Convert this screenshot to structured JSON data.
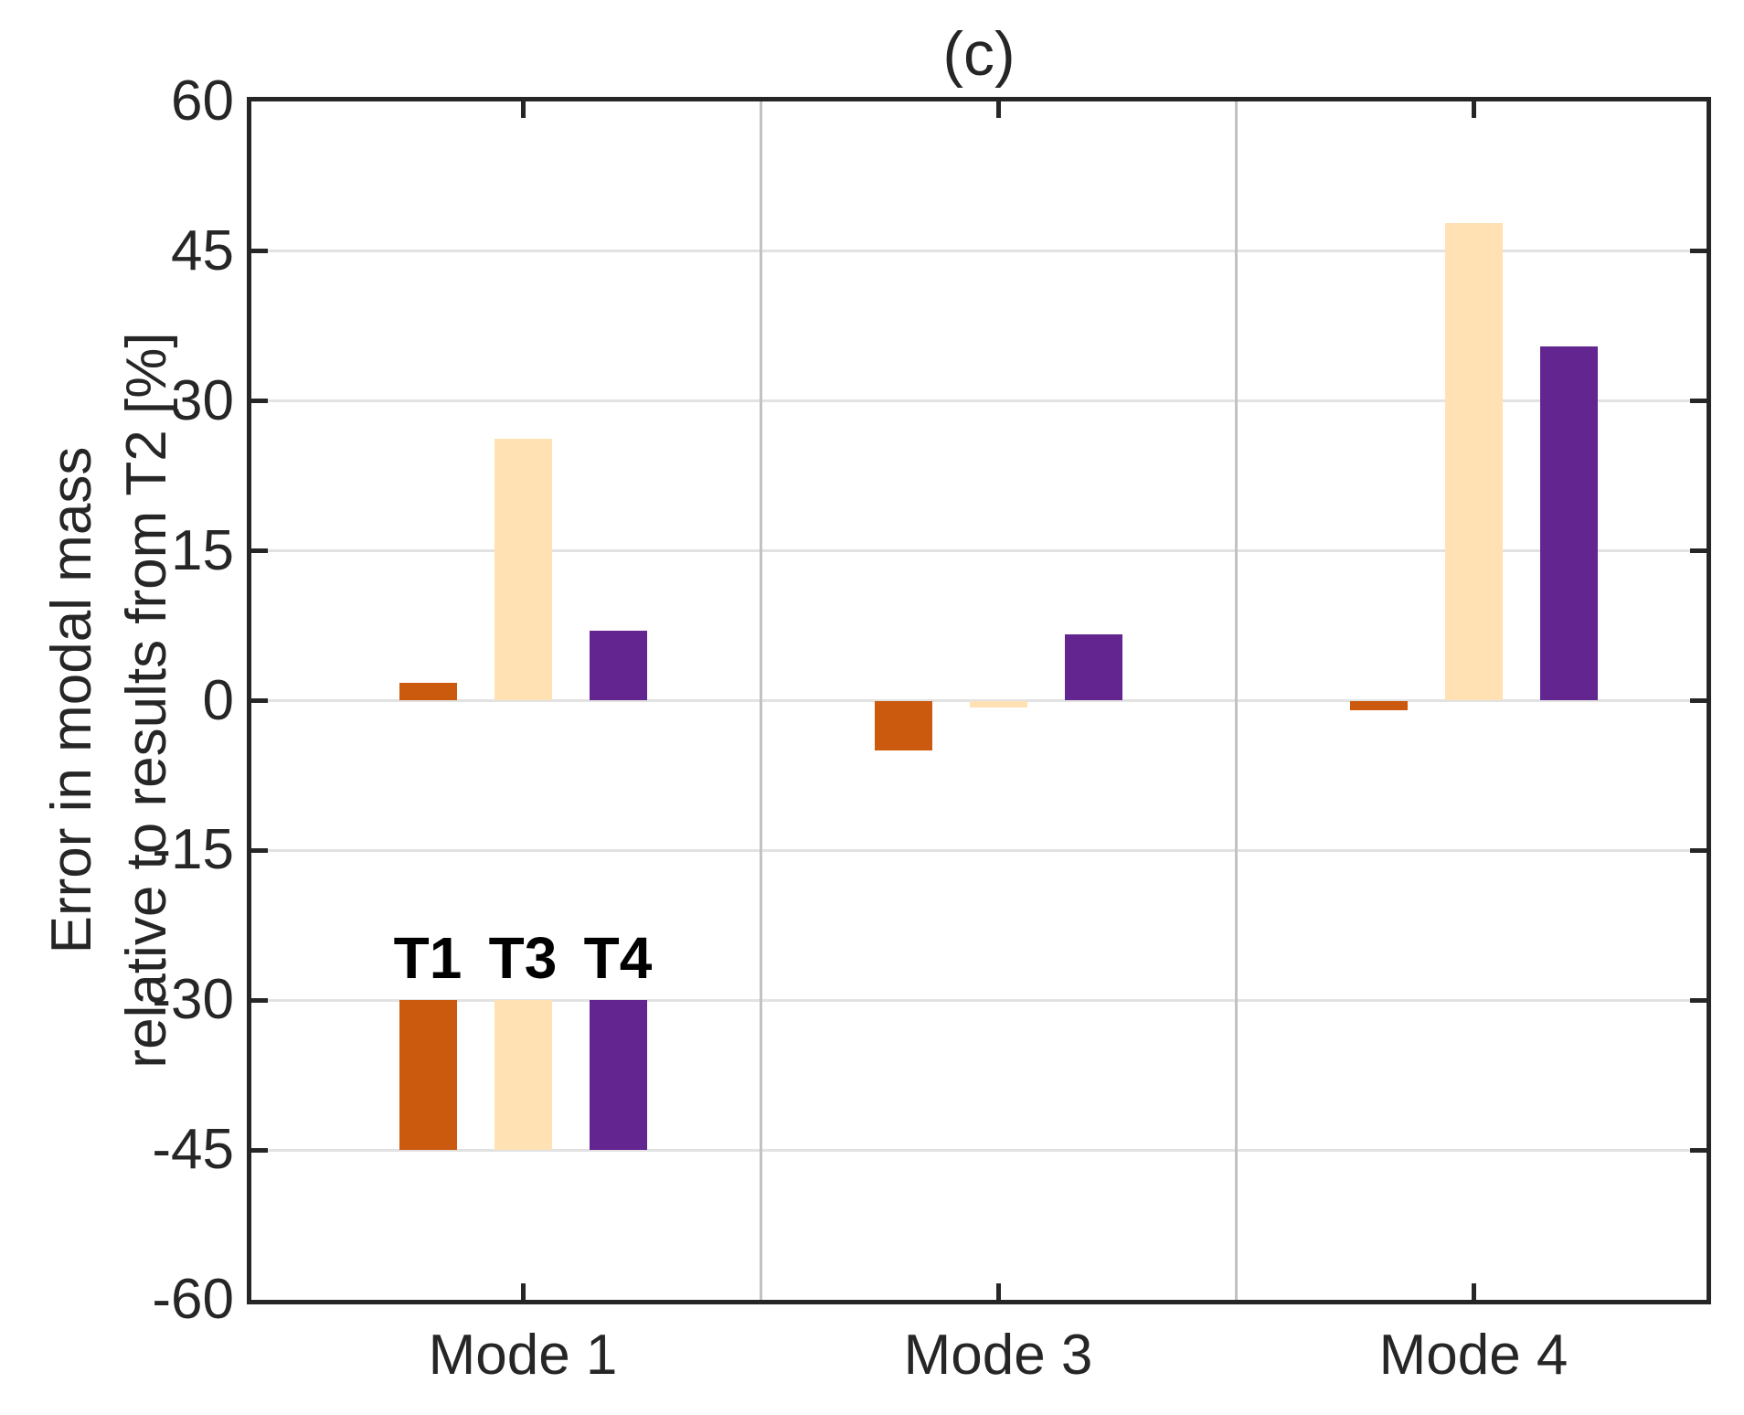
{
  "chart_data": {
    "type": "bar",
    "title": "(c)",
    "categories": [
      "Mode 1",
      "Mode 3",
      "Mode 4"
    ],
    "series": [
      {
        "name": "T1",
        "color": "#cb5a0e",
        "values": [
          1.8,
          -5.0,
          -1.0
        ]
      },
      {
        "name": "T3",
        "color": "#ffe1b4",
        "values": [
          26.2,
          -0.7,
          47.8
        ]
      },
      {
        "name": "T4",
        "color": "#63258f",
        "values": [
          7.0,
          6.6,
          35.5
        ]
      }
    ],
    "ylabel_line1": "Error in modal mass",
    "ylabel_line2": "relative to results from T2 [%]",
    "xlabel": "",
    "ylim": [
      -60,
      60
    ],
    "yticks": [
      60,
      45,
      30,
      15,
      0,
      -15,
      -30,
      -45,
      -60
    ],
    "grid": "horizontal",
    "panel_separators_between_groups": true,
    "legend": {
      "labels": [
        "T1",
        "T3",
        "T4"
      ],
      "location": "inside-lower-left",
      "swatch_value_span": [
        -30,
        -45
      ]
    },
    "colors": {
      "axis": "#262626",
      "gridline": "#e2e2e2",
      "separator": "#c2c2c2",
      "background": "#ffffff"
    }
  }
}
